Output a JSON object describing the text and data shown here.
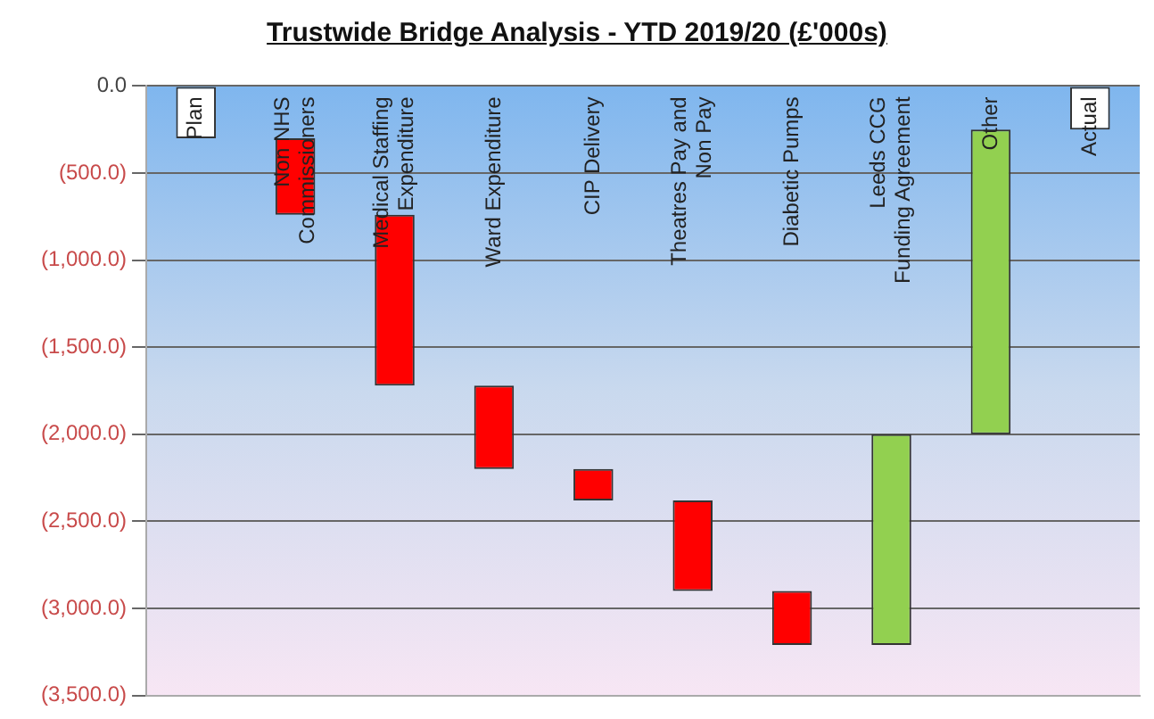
{
  "chart_data": {
    "type": "bar",
    "title": "Trustwide Bridge Analysis  - YTD 2019/20 (£'000s)",
    "categories": [
      "Plan",
      "Non NHS Commissioners",
      "Medical Staffing Expenditure",
      "Ward Expenditure",
      "CIP Delivery",
      "Theatres Pay and Non Pay",
      "Diabetic Pumps",
      "Leeds CCG Funding Agreement",
      "Other",
      "Actual"
    ],
    "values": [
      -300,
      -440,
      -980,
      -480,
      -180,
      -520,
      -310,
      1210,
      1750,
      -250
    ],
    "base": [
      0,
      -300,
      -740,
      -1720,
      -2200,
      -2380,
      -2900,
      -3210,
      -2000,
      0
    ],
    "colors": [
      "#ffffff",
      "#ff0000",
      "#ff0000",
      "#ff0000",
      "#ff0000",
      "#ff0000",
      "#ff0000",
      "#92d050",
      "#92d050",
      "#ffffff"
    ],
    "ylim": [
      -3500,
      0
    ],
    "yticks": [
      {
        "value": 0,
        "label": "0.0"
      },
      {
        "value": -500,
        "label": "(500.0)"
      },
      {
        "value": -1000,
        "label": "(1,000.0)"
      },
      {
        "value": -1500,
        "label": "(1,500.0)"
      },
      {
        "value": -2000,
        "label": "(2,000.0)"
      },
      {
        "value": -2500,
        "label": "(2,500.0)"
      },
      {
        "value": -3000,
        "label": "(3,000.0)"
      },
      {
        "value": -3500,
        "label": "(3,500.0)"
      }
    ],
    "grid": "y",
    "legend": false
  }
}
